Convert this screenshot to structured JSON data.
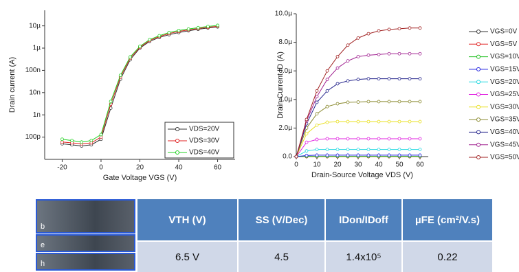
{
  "chart_data": [
    {
      "type": "line",
      "ylog": true,
      "xlabel": "Gate Voltage VGS (V)",
      "ylabel": "Drain current (A)",
      "legend": "lower right",
      "x": [
        -20,
        -15,
        -10,
        -5,
        0,
        5,
        10,
        15,
        20,
        25,
        30,
        35,
        40,
        45,
        50,
        55,
        60
      ],
      "xlim": [
        -29,
        69
      ],
      "xticks": [
        -20,
        0,
        20,
        40,
        60
      ],
      "ylim": [
        1e-11,
        5e-05
      ],
      "yticks": [
        {
          "value": 1e-10,
          "label": "100p"
        },
        {
          "value": 1e-09,
          "label": "1n"
        },
        {
          "value": 1e-08,
          "label": "10n"
        },
        {
          "value": 1e-07,
          "label": "100n"
        },
        {
          "value": 1e-06,
          "label": "1µ"
        },
        {
          "value": 1e-05,
          "label": "10µ"
        }
      ],
      "series": [
        {
          "name": "VDS=20V",
          "color": "#333333",
          "values": [
            5e-11,
            4.5e-11,
            4e-11,
            4.5e-11,
            8e-11,
            2e-09,
            4e-08,
            3e-07,
            1e-06,
            2e-06,
            3e-06,
            4e-06,
            5e-06,
            6e-06,
            7e-06,
            8e-06,
            9e-06
          ]
        },
        {
          "name": "VDS=30V",
          "color": "#e02020",
          "values": [
            6e-11,
            5.5e-11,
            5e-11,
            5.5e-11,
            1e-10,
            3e-09,
            5e-08,
            3.5e-07,
            1.1e-06,
            2.2e-06,
            3.3e-06,
            4.5e-06,
            5.6e-06,
            6.6e-06,
            7.6e-06,
            8.6e-06,
            9.6e-06
          ]
        },
        {
          "name": "VDS=40V",
          "color": "#20d020",
          "values": [
            8e-11,
            7e-11,
            6e-11,
            7e-11,
            1.3e-10,
            4e-09,
            6e-08,
            4e-07,
            1.2e-06,
            2.4e-06,
            3.6e-06,
            5e-06,
            6.2e-06,
            7.2e-06,
            8.3e-06,
            9.4e-06,
            1.05e-05
          ]
        }
      ]
    },
    {
      "type": "line",
      "ylog": false,
      "xlabel": "Drain-Source Voltage VDS (V)",
      "ylabel": "Drain Current  ID (A)",
      "legend": "outside right",
      "x": [
        0,
        5,
        10,
        15,
        20,
        25,
        30,
        35,
        40,
        45,
        50,
        55,
        60
      ],
      "xlim": [
        0,
        64
      ],
      "xticks": [
        0,
        10,
        20,
        30,
        40,
        50,
        60
      ],
      "ylim": [
        0,
        1e-05
      ],
      "yticks": [
        {
          "value": 0,
          "label": "0.0"
        },
        {
          "value": 2e-06,
          "label": "2.0µ"
        },
        {
          "value": 4e-06,
          "label": "4.0µ"
        },
        {
          "value": 6e-06,
          "label": "6.0µ"
        },
        {
          "value": 8e-06,
          "label": "8.0µ"
        },
        {
          "value": 1e-05,
          "label": "10.0µ"
        }
      ],
      "series": [
        {
          "name": "VGS=0V",
          "color": "#333333",
          "values": [
            0,
            0,
            0,
            0,
            0,
            0,
            0,
            0,
            0,
            0,
            0,
            0,
            0
          ]
        },
        {
          "name": "VGS=5V",
          "color": "#e02020",
          "values": [
            0,
            0,
            0,
            0,
            0,
            0,
            0,
            0,
            0,
            0,
            0,
            0,
            0
          ]
        },
        {
          "name": "VGS=10V",
          "color": "#20c020",
          "values": [
            0,
            2e-08,
            2e-08,
            2e-08,
            2e-08,
            2e-08,
            2e-08,
            2e-08,
            2e-08,
            2e-08,
            2e-08,
            2e-08,
            2e-08
          ]
        },
        {
          "name": "VGS=15V",
          "color": "#2020e0",
          "values": [
            0,
            8e-08,
            1e-07,
            1e-07,
            1e-07,
            1e-07,
            1e-07,
            1e-07,
            1e-07,
            1e-07,
            1e-07,
            1e-07,
            1e-07
          ]
        },
        {
          "name": "VGS=20V",
          "color": "#20d8e0",
          "values": [
            0,
            4e-07,
            5e-07,
            5e-07,
            5e-07,
            5e-07,
            5e-07,
            5e-07,
            5e-07,
            5e-07,
            5e-07,
            5e-07,
            5e-07
          ]
        },
        {
          "name": "VGS=25V",
          "color": "#e020e0",
          "values": [
            0,
            1e-06,
            1.2e-06,
            1.25e-06,
            1.25e-06,
            1.25e-06,
            1.25e-06,
            1.25e-06,
            1.25e-06,
            1.25e-06,
            1.25e-06,
            1.25e-06,
            1.25e-06
          ]
        },
        {
          "name": "VGS=30V",
          "color": "#e8e020",
          "values": [
            0,
            1.6e-06,
            2.2e-06,
            2.4e-06,
            2.45e-06,
            2.45e-06,
            2.45e-06,
            2.45e-06,
            2.45e-06,
            2.45e-06,
            2.45e-06,
            2.45e-06,
            2.45e-06
          ]
        },
        {
          "name": "VGS=35V",
          "color": "#8a8a30",
          "values": [
            0,
            2e-06,
            3e-06,
            3.5e-06,
            3.7e-06,
            3.8e-06,
            3.82e-06,
            3.85e-06,
            3.85e-06,
            3.85e-06,
            3.85e-06,
            3.85e-06,
            3.85e-06
          ]
        },
        {
          "name": "VGS=40V",
          "color": "#20208a",
          "values": [
            0,
            2.3e-06,
            3.8e-06,
            4.6e-06,
            5.1e-06,
            5.3e-06,
            5.4e-06,
            5.45e-06,
            5.45e-06,
            5.45e-06,
            5.45e-06,
            5.45e-06,
            5.45e-06
          ]
        },
        {
          "name": "VGS=45V",
          "color": "#a02090",
          "values": [
            0,
            2.5e-06,
            4.2e-06,
            5.4e-06,
            6.2e-06,
            6.7e-06,
            7e-06,
            7.1e-06,
            7.15e-06,
            7.2e-06,
            7.2e-06,
            7.2e-06,
            7.2e-06
          ]
        },
        {
          "name": "VGS=50V",
          "color": "#a02020",
          "values": [
            0,
            2.6e-06,
            4.6e-06,
            6e-06,
            7e-06,
            7.8e-06,
            8.3e-06,
            8.6e-06,
            8.8e-06,
            8.9e-06,
            8.95e-06,
            9e-06,
            9e-06
          ]
        }
      ]
    }
  ],
  "image_labels": [
    "b",
    "e",
    "h"
  ],
  "table": {
    "header": [
      "VTH (V)",
      "SS (V/Dec)",
      "IDon/IDoff",
      "µFE (cm²/V.s)"
    ],
    "row": [
      "6.5 V",
      "4.5",
      "1.4x10⁵",
      "0.22"
    ]
  }
}
